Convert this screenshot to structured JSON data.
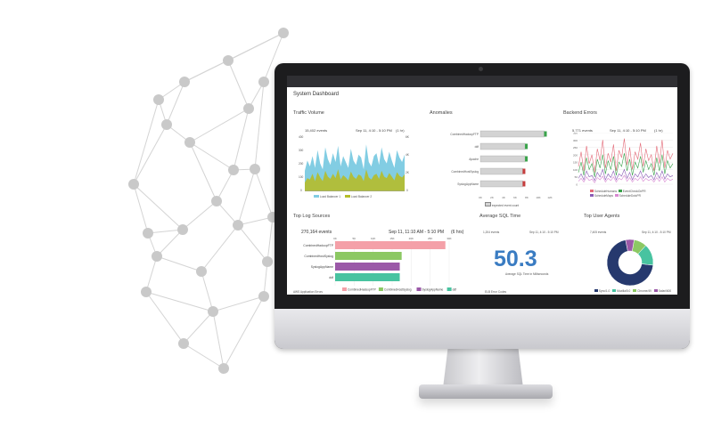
{
  "dashboard": {
    "title": "System Dashboard",
    "traffic": {
      "title": "Traffic Volume",
      "events": "15,402 events",
      "range": "Sep 11, 4:10 - 5:10 PM",
      "interval": "(1 hr)",
      "legend": [
        "Load Balancer 1",
        "Load Balancer 2"
      ],
      "y_ticks_left": [
        "400",
        "300",
        "200",
        "100",
        "0"
      ],
      "y_ticks_right": [
        "6K",
        "4K",
        "2K",
        "0"
      ]
    },
    "anomalies": {
      "title": "Anomalies",
      "x_ticks": [
        "0K",
        "2K",
        "4K",
        "6K",
        "8K",
        "10K",
        "12K"
      ],
      "legend": "expected event count"
    },
    "backend_errors": {
      "title": "Backend Errors",
      "events": "5,771 events",
      "range": "Sep 11, 4:10 - 5:10 PM",
      "interval": "(1 hr)",
      "y_ticks": [
        "350",
        "300",
        "250",
        "200",
        "150",
        "100",
        "50",
        "0"
      ],
      "legend": [
        "ScheduleHumans",
        "EventCheckOnPR",
        "ScheduleMaps",
        "ScheduleDotcPR"
      ]
    },
    "top_log_sources": {
      "title": "Top Log Sources",
      "events": "270,164 events",
      "range": "Sep 11, 11:10 AM - 5:10 PM",
      "interval": "(6 hrs)",
      "x_ticks": [
        "0K",
        "5K",
        "10K",
        "15K",
        "20K",
        "25K",
        "30K"
      ]
    },
    "avg_sql": {
      "title": "Average SQL Time",
      "events": "1,204 events",
      "range": "Sep 11, 4:10 - 5:10 PM",
      "value": "50.3",
      "caption": "Average SQL Time in Milliseconds"
    },
    "top_user_agents": {
      "title": "Top User Agents",
      "events": "7,405 events",
      "range": "Sep 11, 4:10 - 5:10 PM",
      "legend": [
        "Sync/1.0",
        "Mozilla/5.0",
        "Chrome/49",
        "Safari/600"
      ]
    },
    "lower_labels": [
      "AWS Application Errors",
      "ELB Error Codes"
    ]
  },
  "colors": {
    "accent": "#3a7cc2",
    "screen_header": "#2f2f33",
    "series_blue": "#82cde3",
    "series_olive": "#b5bd2a",
    "anomaly_bar": "#d3d3d3",
    "anomaly_marker": "#3aa34b",
    "anomaly_alert": "#c63d3d",
    "pink": "#f4a0a8",
    "green": "#8cc863",
    "purple": "#9b59a8",
    "teal": "#48c3a0",
    "navy": "#26396e"
  },
  "chart_data": [
    {
      "type": "area",
      "title": "Traffic Volume",
      "x": [
        1,
        2,
        3,
        4,
        5,
        6,
        7,
        8,
        9,
        10,
        11,
        12,
        13,
        14,
        15,
        16,
        17,
        18,
        19,
        20,
        21,
        22,
        23,
        24,
        25,
        26,
        27,
        28,
        29,
        30,
        31,
        32,
        33,
        34,
        35,
        36,
        37,
        38,
        39,
        40
      ],
      "series": [
        {
          "name": "Load Balancer 1",
          "values": [
            140,
            210,
            170,
            240,
            160,
            280,
            190,
            150,
            300,
            220,
            180,
            260,
            200,
            310,
            170,
            240,
            200,
            160,
            290,
            210,
            180,
            250,
            230,
            150,
            320,
            200,
            170,
            240,
            260,
            180,
            300,
            220,
            190,
            270,
            210,
            160,
            280,
            230,
            200,
            250
          ]
        },
        {
          "name": "Load Balancer 2",
          "values": [
            60,
            90,
            80,
            120,
            70,
            130,
            95,
            70,
            140,
            100,
            85,
            120,
            90,
            150,
            80,
            110,
            95,
            75,
            135,
            100,
            85,
            115,
            105,
            70,
            150,
            95,
            80,
            110,
            120,
            85,
            140,
            100,
            90,
            125,
            100,
            75,
            130,
            105,
            95,
            115
          ]
        }
      ],
      "ylim": [
        0,
        400
      ]
    },
    {
      "type": "bar",
      "title": "Anomalies",
      "categories": [
        "CombinedHadoopFTP",
        "ddf",
        "Apache",
        "CombinedHostSyslog",
        "SyslogAppName"
      ],
      "values": [
        11000,
        7700,
        7700,
        7300,
        7300
      ],
      "xlim": [
        0,
        12000
      ]
    },
    {
      "type": "line",
      "title": "Backend Errors",
      "x": [
        1,
        2,
        3,
        4,
        5,
        6,
        7,
        8,
        9,
        10,
        11,
        12,
        13,
        14,
        15,
        16,
        17,
        18,
        19,
        20,
        21,
        22,
        23,
        24,
        25,
        26,
        27,
        28,
        29,
        30,
        31,
        32,
        33,
        34,
        35,
        36
      ],
      "series": [
        {
          "name": "ScheduleHumans",
          "values": [
            120,
            220,
            90,
            260,
            140,
            200,
            80,
            240,
            160,
            300,
            110,
            210,
            150,
            270,
            90,
            230,
            180,
            310,
            130,
            250,
            100,
            220,
            170,
            280,
            120,
            240,
            160,
            200,
            90,
            260,
            140,
            300,
            110,
            230,
            170,
            210
          ]
        },
        {
          "name": "EventCheckOnPR",
          "values": [
            80,
            150,
            60,
            180,
            100,
            140,
            50,
            170,
            110,
            200,
            70,
            160,
            100,
            190,
            60,
            150,
            120,
            210,
            90,
            170,
            60,
            150,
            110,
            190,
            80,
            160,
            100,
            140,
            60,
            180,
            90,
            200,
            70,
            160,
            110,
            140
          ]
        },
        {
          "name": "ScheduleMaps",
          "values": [
            40,
            70,
            30,
            90,
            50,
            60,
            25,
            80,
            50,
            100,
            30,
            70,
            45,
            90,
            30,
            70,
            55,
            100,
            40,
            80,
            30,
            70,
            50,
            90,
            40,
            70,
            45,
            60,
            30,
            80,
            40,
            90,
            35,
            70,
            50,
            60
          ]
        },
        {
          "name": "ScheduleDotcPR",
          "values": [
            20,
            40,
            15,
            50,
            25,
            35,
            10,
            45,
            30,
            55,
            15,
            40,
            25,
            50,
            15,
            40,
            30,
            60,
            20,
            45,
            15,
            40,
            25,
            50,
            20,
            40,
            25,
            35,
            15,
            45,
            20,
            50,
            15,
            40,
            25,
            35
          ]
        }
      ],
      "ylim": [
        0,
        350
      ]
    },
    {
      "type": "bar",
      "title": "Top Log Sources",
      "categories": [
        "CombinedHadoopFTP",
        "CombinedHostSyslog",
        "SyslogAppName",
        "ddf"
      ],
      "values": [
        29000,
        17500,
        17000,
        17000
      ],
      "xlim": [
        0,
        30000
      ]
    },
    {
      "type": "pie",
      "title": "Top User Agents",
      "categories": [
        "Sync/1.0",
        "Mozilla/5.0",
        "Chrome/49",
        "Safari/600"
      ],
      "values": [
        70,
        15,
        9,
        6
      ]
    }
  ]
}
